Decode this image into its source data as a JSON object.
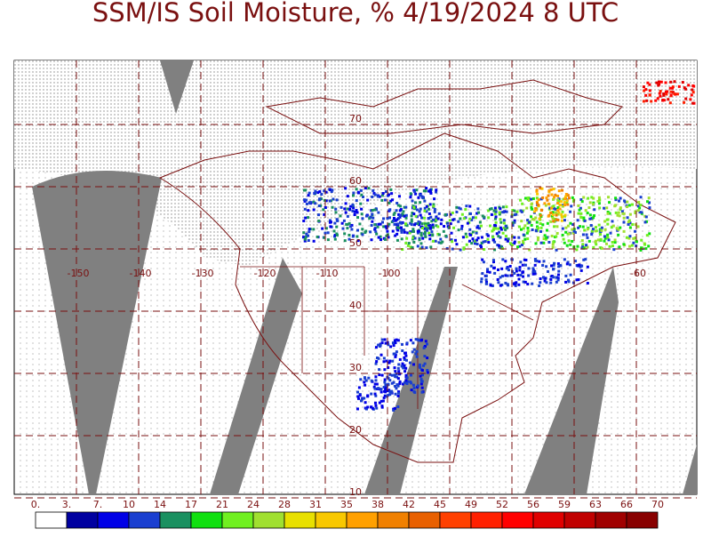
{
  "title": "SSM/IS Soil Moisture, % 4/19/2024 8 UTC",
  "map": {
    "lat_labels": [
      "70",
      "60",
      "50",
      "40",
      "30",
      "20",
      "10"
    ],
    "lon_labels": [
      "-150",
      "-140",
      "-130",
      "-120",
      "-110",
      "-100",
      "-60"
    ]
  },
  "legend": {
    "labels": [
      "0.",
      "3.",
      "7.",
      "10",
      "14",
      "17",
      "21",
      "24",
      "28",
      "31",
      "35",
      "38",
      "42",
      "45",
      "49",
      "52",
      "56",
      "59",
      "63",
      "66",
      "70"
    ],
    "colors": [
      "#ffffff",
      "#0000a0",
      "#0000e6",
      "#1a3fd0",
      "#1a9060",
      "#10e010",
      "#70f020",
      "#a0e030",
      "#e8e000",
      "#f8c800",
      "#ffa000",
      "#f08000",
      "#e86000",
      "#ff4000",
      "#ff2000",
      "#ff0000",
      "#e00000",
      "#c00000",
      "#a00000",
      "#880000"
    ]
  }
}
